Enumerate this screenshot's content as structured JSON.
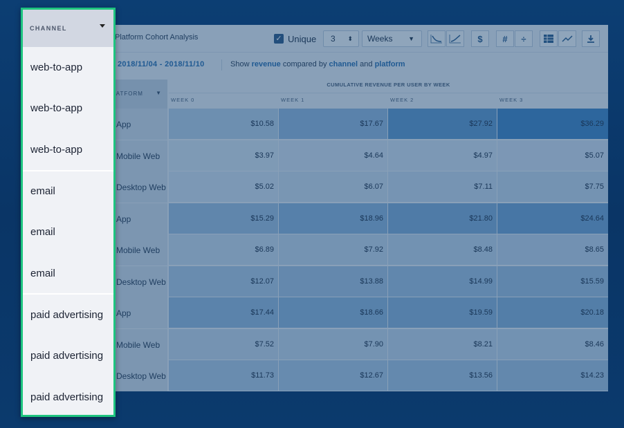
{
  "panel": {
    "title": "Platform Cohort Analysis",
    "unique_label": "Unique",
    "unique_checked": "✓",
    "periods_value": "3",
    "granularity_value": "Weeks",
    "icons": [
      "decline-chart-icon",
      "growth-chart-icon",
      "dollar-icon",
      "hash-icon",
      "divide-icon",
      "table-icon",
      "line-chart-icon",
      "download-icon"
    ],
    "date_range": "2018/11/04 - 2018/11/10",
    "show_text": {
      "show": "Show",
      "metric": "revenue",
      "compared_by": "compared by",
      "dim1": "channel",
      "and": "and",
      "dim2": "platform"
    },
    "platform_header": "PLATFORM",
    "group_header": "CUMULATIVE REVENUE PER USER BY WEEK",
    "weeks": [
      "WEEK 0",
      "WEEK 1",
      "WEEK 2",
      "WEEK 3"
    ],
    "rows": [
      {
        "label": "App",
        "values": [
          "$10.58",
          "$17.67",
          "$27.92",
          "$36.29"
        ]
      },
      {
        "label": "Mobile Web",
        "values": [
          "$3.97",
          "$4.64",
          "$4.97",
          "$5.07"
        ]
      },
      {
        "label": "Desktop Web",
        "values": [
          "$5.02",
          "$6.07",
          "$7.11",
          "$7.75"
        ]
      },
      {
        "label": "App",
        "values": [
          "$15.29",
          "$18.96",
          "$21.80",
          "$24.64"
        ]
      },
      {
        "label": "Mobile Web",
        "values": [
          "$6.89",
          "$7.92",
          "$8.48",
          "$8.65"
        ]
      },
      {
        "label": "Desktop Web",
        "values": [
          "$12.07",
          "$13.88",
          "$14.99",
          "$15.59"
        ]
      },
      {
        "label": "App",
        "values": [
          "$17.44",
          "$18.66",
          "$19.59",
          "$20.18"
        ]
      },
      {
        "label": "Mobile Web",
        "values": [
          "$7.52",
          "$7.90",
          "$8.21",
          "$8.46"
        ]
      },
      {
        "label": "Desktop Web",
        "values": [
          "$11.73",
          "$12.67",
          "$13.56",
          "$14.23"
        ]
      }
    ]
  },
  "dropdown": {
    "header": "CHANNEL",
    "items": [
      "web-to-app",
      "web-to-app",
      "web-to-app",
      "email",
      "email",
      "email",
      "paid advertising",
      "paid advertising",
      "paid advertising"
    ]
  },
  "colors": {
    "accent_border": "#1ec47f",
    "background": "#0c3e73",
    "link": "#2b6fb0"
  }
}
